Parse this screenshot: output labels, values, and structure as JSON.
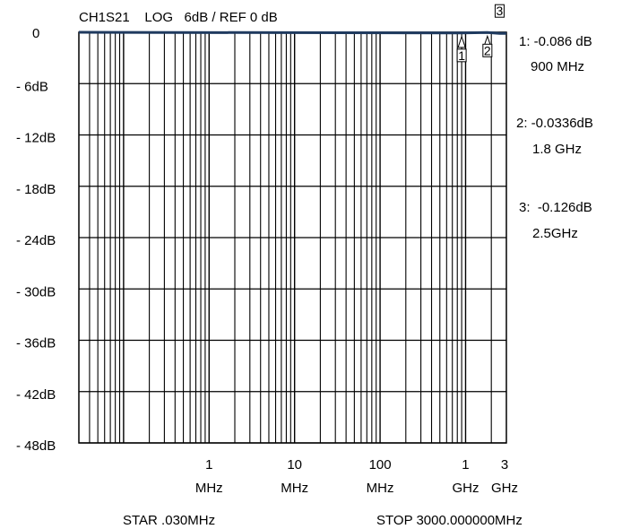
{
  "chart_data": {
    "type": "line",
    "title": "CH1S21    LOG   6dB / REF 0 dB",
    "x_scale": "log",
    "xlim_hz": [
      30000,
      3000000000
    ],
    "ylim": [
      -48,
      0
    ],
    "grid": true,
    "y_ticks": [
      {
        "value": 0,
        "label": "0"
      },
      {
        "value": -6,
        "label": "- 6dB"
      },
      {
        "value": -12,
        "label": "- 12dB"
      },
      {
        "value": -18,
        "label": "- 18dB"
      },
      {
        "value": -24,
        "label": "- 24dB"
      },
      {
        "value": -30,
        "label": "- 30dB"
      },
      {
        "value": -36,
        "label": "- 36dB"
      },
      {
        "value": -42,
        "label": "- 42dB"
      },
      {
        "value": -48,
        "label": "- 48dB"
      }
    ],
    "x_ticks": [
      {
        "hz": 1000000,
        "value_label": "1",
        "unit_label": "MHz"
      },
      {
        "hz": 10000000,
        "value_label": "10",
        "unit_label": "MHz"
      },
      {
        "hz": 100000000,
        "value_label": "100",
        "unit_label": "MHz"
      },
      {
        "hz": 1000000000,
        "value_label": "1",
        "unit_label": "GHz"
      },
      {
        "hz": 3000000000,
        "value_label": "3",
        "unit_label": "GHz"
      }
    ],
    "series": [
      {
        "x_hz": [
          30000,
          900000000,
          1800000000,
          2500000000,
          3000000000
        ],
        "y_db": [
          0,
          -0.086,
          -0.0336,
          -0.126,
          -0.13
        ]
      }
    ],
    "markers": [
      {
        "id": "1",
        "hz": 900000000,
        "db": -0.086,
        "value_text": "1: -0.086 dB",
        "freq_text": "900 MHz"
      },
      {
        "id": "2",
        "hz": 1800000000,
        "db": -0.0336,
        "value_text": "2: -0.0336dB",
        "freq_text": "1.8 GHz"
      },
      {
        "id": "3",
        "hz": 2500000000,
        "db": -0.126,
        "value_text": "3:  -0.126dB",
        "freq_text": "2.5GHz"
      }
    ],
    "start_label": "STAR .030MHz",
    "stop_label": "STOP 3000.000000MHz",
    "trace_color": "#1f3a5f"
  }
}
